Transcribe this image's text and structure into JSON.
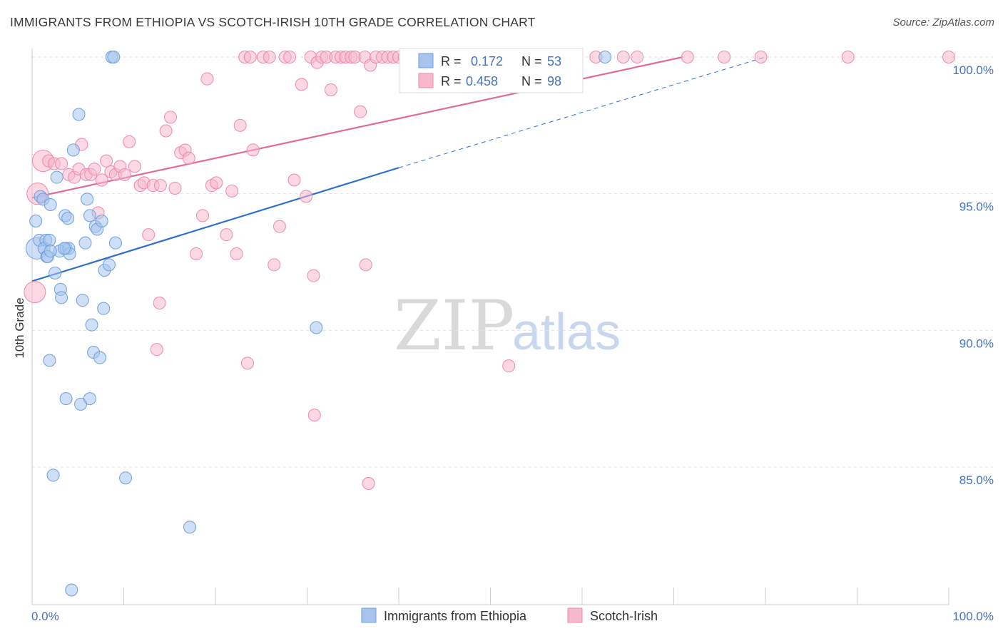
{
  "header": {
    "title": "IMMIGRANTS FROM ETHIOPIA VS SCOTCH-IRISH 10TH GRADE CORRELATION CHART",
    "source": "Source: ZipAtlas.com"
  },
  "watermark": {
    "zip": "ZIP",
    "atlas": "atlas"
  },
  "legend_box": {
    "rows": [
      {
        "r_label": "R =",
        "r_value": "0.172",
        "n_label": "N =",
        "n_value": "53",
        "color": "#a8c4ec"
      },
      {
        "r_label": "R =",
        "r_value": "0.458",
        "n_label": "N =",
        "n_value": "98",
        "color": "#f7b8cb"
      }
    ]
  },
  "bottom_legend": {
    "items": [
      {
        "label": "Immigrants from Ethiopia",
        "color": "#a8c4ec"
      },
      {
        "label": "Scotch-Irish",
        "color": "#f7b8cb"
      }
    ]
  },
  "chart_data": {
    "type": "scatter",
    "title": "IMMIGRANTS FROM ETHIOPIA VS SCOTCH-IRISH 10TH GRADE CORRELATION CHART",
    "xlabel": "",
    "ylabel": "10th Grade",
    "xlim": [
      0,
      100
    ],
    "ylim": [
      80.4,
      100.5
    ],
    "y_ticks": [
      {
        "value": 100,
        "label": "100.0%"
      },
      {
        "value": 95,
        "label": "95.0%"
      },
      {
        "value": 90,
        "label": "90.0%"
      },
      {
        "value": 85,
        "label": "85.0%"
      }
    ],
    "x_tick_labels": [
      {
        "value": 0,
        "label": "0.0%"
      },
      {
        "value": 100,
        "label": "100.0%"
      }
    ],
    "x_minor_ticks": [
      10,
      20,
      30,
      40,
      50,
      60,
      70,
      80,
      90,
      100
    ],
    "grid": true,
    "series": [
      {
        "name": "Immigrants from Ethiopia",
        "color": "#6f9fdd",
        "fill": "#a8c4ec",
        "trend": {
          "x": [
            0,
            40
          ],
          "y": [
            91.8,
            95.95
          ],
          "color": "#2e6fcb",
          "extend_to": [
            80,
            100.0
          ]
        },
        "points": [
          [
            0.5,
            93.0
          ],
          [
            0.8,
            93.3
          ],
          [
            0.4,
            94.0
          ],
          [
            0.9,
            94.9
          ],
          [
            1.2,
            94.8
          ],
          [
            1.5,
            93.3
          ],
          [
            1.3,
            93.0
          ],
          [
            1.6,
            92.7
          ],
          [
            1.9,
            93.3
          ],
          [
            2.0,
            94.6
          ],
          [
            1.7,
            92.7
          ],
          [
            2.5,
            92.1
          ],
          [
            2.7,
            95.6
          ],
          [
            3.1,
            91.5
          ],
          [
            3.2,
            91.2
          ],
          [
            3.0,
            92.9
          ],
          [
            3.6,
            94.2
          ],
          [
            3.7,
            93.0
          ],
          [
            3.9,
            94.1
          ],
          [
            4.0,
            93.0
          ],
          [
            4.1,
            92.8
          ],
          [
            4.5,
            96.6
          ],
          [
            5.1,
            97.9
          ],
          [
            5.5,
            91.1
          ],
          [
            5.8,
            93.2
          ],
          [
            6.0,
            94.8
          ],
          [
            6.3,
            94.2
          ],
          [
            6.5,
            90.2
          ],
          [
            6.7,
            89.2
          ],
          [
            6.9,
            93.8
          ],
          [
            7.1,
            93.7
          ],
          [
            7.4,
            89.0
          ],
          [
            7.6,
            94.0
          ],
          [
            7.8,
            90.8
          ],
          [
            7.9,
            92.2
          ],
          [
            8.4,
            92.4
          ],
          [
            8.7,
            100.0
          ],
          [
            8.9,
            100.0
          ],
          [
            9.1,
            93.2
          ],
          [
            1.9,
            88.9
          ],
          [
            2.3,
            84.7
          ],
          [
            3.7,
            87.5
          ],
          [
            5.3,
            87.3
          ],
          [
            6.3,
            87.5
          ],
          [
            10.2,
            84.6
          ],
          [
            17.2,
            82.8
          ],
          [
            4.3,
            80.5
          ],
          [
            31.0,
            90.1
          ],
          [
            40.8,
            100.0
          ],
          [
            46.0,
            100.0
          ],
          [
            62.5,
            100.0
          ],
          [
            3.5,
            93.0
          ],
          [
            2.0,
            92.9
          ]
        ]
      },
      {
        "name": "Scotch-Irish",
        "color": "#ec8aab",
        "fill": "#f7b8cb",
        "trend": {
          "x": [
            0,
            71
          ],
          "y": [
            94.85,
            100.0
          ],
          "color": "#e06c94"
        },
        "points": [
          [
            0.3,
            91.4
          ],
          [
            0.6,
            95.0
          ],
          [
            1.2,
            96.2
          ],
          [
            1.8,
            96.2
          ],
          [
            2.4,
            96.1
          ],
          [
            3.2,
            96.1
          ],
          [
            4.0,
            95.7
          ],
          [
            4.6,
            95.6
          ],
          [
            5.1,
            95.9
          ],
          [
            5.4,
            96.8
          ],
          [
            5.9,
            95.7
          ],
          [
            6.4,
            95.7
          ],
          [
            6.8,
            95.9
          ],
          [
            7.2,
            94.3
          ],
          [
            7.6,
            95.5
          ],
          [
            8.1,
            96.2
          ],
          [
            8.6,
            95.8
          ],
          [
            9.1,
            95.7
          ],
          [
            9.6,
            96.0
          ],
          [
            10.1,
            95.7
          ],
          [
            10.6,
            96.9
          ],
          [
            11.2,
            96.0
          ],
          [
            11.8,
            95.3
          ],
          [
            12.2,
            95.4
          ],
          [
            12.7,
            93.5
          ],
          [
            13.2,
            95.3
          ],
          [
            14.0,
            95.3
          ],
          [
            14.6,
            97.3
          ],
          [
            15.1,
            97.8
          ],
          [
            15.6,
            95.2
          ],
          [
            16.2,
            96.5
          ],
          [
            16.7,
            96.6
          ],
          [
            17.1,
            96.3
          ],
          [
            17.9,
            92.8
          ],
          [
            18.6,
            94.2
          ],
          [
            19.1,
            99.2
          ],
          [
            19.6,
            95.3
          ],
          [
            20.1,
            95.4
          ],
          [
            21.2,
            93.5
          ],
          [
            21.8,
            95.1
          ],
          [
            22.3,
            92.8
          ],
          [
            22.7,
            97.5
          ],
          [
            23.2,
            100.0
          ],
          [
            23.8,
            100.0
          ],
          [
            24.1,
            96.6
          ],
          [
            25.2,
            100.0
          ],
          [
            25.9,
            100.0
          ],
          [
            26.4,
            92.4
          ],
          [
            27.0,
            93.8
          ],
          [
            27.6,
            100.0
          ],
          [
            28.1,
            100.0
          ],
          [
            28.6,
            95.5
          ],
          [
            29.4,
            99.0
          ],
          [
            29.9,
            94.9
          ],
          [
            30.4,
            100.0
          ],
          [
            31.1,
            99.8
          ],
          [
            31.6,
            100.0
          ],
          [
            32.1,
            100.0
          ],
          [
            32.6,
            98.8
          ],
          [
            33.1,
            100.0
          ],
          [
            33.7,
            100.0
          ],
          [
            34.2,
            100.0
          ],
          [
            34.8,
            100.0
          ],
          [
            35.2,
            100.0
          ],
          [
            35.8,
            98.0
          ],
          [
            36.3,
            100.0
          ],
          [
            36.9,
            99.7
          ],
          [
            37.5,
            100.0
          ],
          [
            38.2,
            100.0
          ],
          [
            38.8,
            100.0
          ],
          [
            39.4,
            100.0
          ],
          [
            40.0,
            100.0
          ],
          [
            40.6,
            100.0
          ],
          [
            41.5,
            100.0
          ],
          [
            43.0,
            100.0
          ],
          [
            45.5,
            100.0
          ],
          [
            48.0,
            100.0
          ],
          [
            50.0,
            100.0
          ],
          [
            52.0,
            100.0
          ],
          [
            55.0,
            100.0
          ],
          [
            56.5,
            100.0
          ],
          [
            58.5,
            100.0
          ],
          [
            61.5,
            100.0
          ],
          [
            64.5,
            100.0
          ],
          [
            66.0,
            100.0
          ],
          [
            71.5,
            100.0
          ],
          [
            75.5,
            100.0
          ],
          [
            79.5,
            100.0
          ],
          [
            89.0,
            100.0
          ],
          [
            100.0,
            100.0
          ],
          [
            13.6,
            89.3
          ],
          [
            13.9,
            91.0
          ],
          [
            23.5,
            88.8
          ],
          [
            30.7,
            92.0
          ],
          [
            30.8,
            86.9
          ],
          [
            36.4,
            92.4
          ],
          [
            36.7,
            84.4
          ],
          [
            52.0,
            88.7
          ]
        ]
      }
    ],
    "large_points": [
      {
        "series": 1,
        "x": 0.3,
        "y": 91.4
      },
      {
        "series": 1,
        "x": 0.6,
        "y": 95.0
      },
      {
        "series": 1,
        "x": 1.2,
        "y": 96.2
      },
      {
        "series": 0,
        "x": 0.5,
        "y": 93.0
      }
    ]
  }
}
